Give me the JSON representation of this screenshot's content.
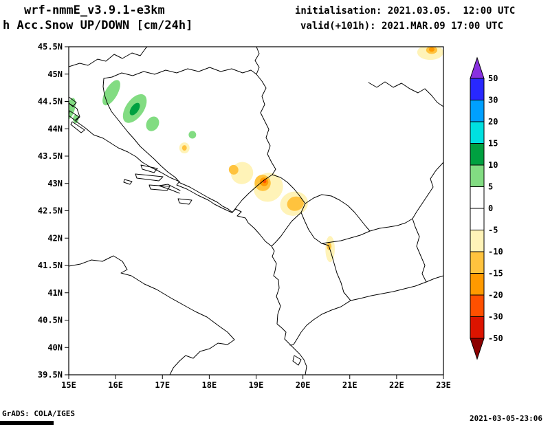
{
  "header": {
    "model": "wrf-nmmE_v3.9.1-e3km",
    "product": "h Acc.Snow UP/DOWN [cm/24h]",
    "initialisation": "initialisation: 2021.03.05.  12:00 UTC",
    "valid": "valid(+101h): 2021.MAR.09 17:00 UTC"
  },
  "footer": {
    "left": "GrADS: COLA/IGES",
    "right": "2021-03-05-23:06"
  },
  "chart_data": {
    "type": "heatmap",
    "x_axis": {
      "range": [
        15,
        23
      ],
      "values": [
        15,
        16,
        17,
        18,
        19,
        20,
        21,
        22,
        23
      ],
      "labels": [
        "15E",
        "16E",
        "17E",
        "18E",
        "19E",
        "20E",
        "21E",
        "22E",
        "23E"
      ]
    },
    "y_axis": {
      "range": [
        39.5,
        45.5
      ],
      "values": [
        45.5,
        45,
        44.5,
        44,
        43.5,
        43,
        42.5,
        42,
        41.5,
        41,
        40.5,
        40,
        39.5
      ],
      "labels": [
        "45.5N",
        "45N",
        "44.5N",
        "44N",
        "43.5N",
        "43N",
        "42.5N",
        "42N",
        "41.5N",
        "41N",
        "40.5N",
        "40N",
        "39.5N"
      ]
    },
    "colorbar": {
      "labels": [
        "50",
        "30",
        "20",
        "15",
        "10",
        "5",
        "0",
        "-5",
        "-10",
        "-15",
        "-20",
        "-30",
        "-50"
      ],
      "colors_top_to_bottom": [
        "#8830E0",
        "#2828FF",
        "#00A0FF",
        "#00E0E0",
        "#00A040",
        "#82DC82",
        "#FFFFFF",
        "#FFFFFF",
        "#FFF3B8",
        "#FFC33E",
        "#FF9A00",
        "#FF5000",
        "#DC1400",
        "#8C0000"
      ]
    },
    "snow_regions": [
      {
        "value_cm": "+5 to +10",
        "color": "#82DC82",
        "lon": 15.91,
        "lat": 44.66,
        "rx_deg": 0.13,
        "ry_deg": 0.26,
        "rot_deg": 30
      },
      {
        "value_cm": "+5 to +10",
        "color": "#82DC82",
        "lon": 16.41,
        "lat": 44.37,
        "rx_deg": 0.19,
        "ry_deg": 0.3,
        "rot_deg": 35
      },
      {
        "value_cm": "+5 to +10",
        "color": "#82DC82",
        "lon": 16.79,
        "lat": 44.09,
        "rx_deg": 0.13,
        "ry_deg": 0.14,
        "rot_deg": 30
      },
      {
        "value_cm": "+5 to +10",
        "color": "#82DC82",
        "lon": 15.04,
        "lat": 44.37,
        "rx_deg": 0.09,
        "ry_deg": 0.2,
        "rot_deg": 15
      },
      {
        "value_cm": "+5 to +10",
        "color": "#82DC82",
        "lon": 15.15,
        "lat": 44.18,
        "rx_deg": 0.06,
        "ry_deg": 0.08,
        "rot_deg": 0
      },
      {
        "value_cm": "+5 to +10",
        "color": "#82DC82",
        "lon": 17.64,
        "lat": 43.89,
        "rx_deg": 0.08,
        "ry_deg": 0.07,
        "rot_deg": 0
      },
      {
        "value_cm": "+10 to +15",
        "color": "#00A040",
        "lon": 16.41,
        "lat": 44.36,
        "rx_deg": 0.08,
        "ry_deg": 0.13,
        "rot_deg": 35
      },
      {
        "value_cm": "-5 to -10",
        "color": "#FFF3B8",
        "lon": 18.7,
        "lat": 43.19,
        "rx_deg": 0.24,
        "ry_deg": 0.2,
        "rot_deg": -40
      },
      {
        "value_cm": "-5 to -10",
        "color": "#FFF3B8",
        "lon": 19.26,
        "lat": 42.93,
        "rx_deg": 0.32,
        "ry_deg": 0.26,
        "rot_deg": -35
      },
      {
        "value_cm": "-5 to -10",
        "color": "#FFF3B8",
        "lon": 19.81,
        "lat": 42.63,
        "rx_deg": 0.3,
        "ry_deg": 0.22,
        "rot_deg": -15
      },
      {
        "value_cm": "-5 to -10",
        "color": "#FFF3B8",
        "lon": 17.47,
        "lat": 43.65,
        "rx_deg": 0.11,
        "ry_deg": 0.1,
        "rot_deg": 0
      },
      {
        "value_cm": "-5 to -10",
        "color": "#FFF3B8",
        "lon": 20.58,
        "lat": 41.8,
        "rx_deg": 0.1,
        "ry_deg": 0.24,
        "rot_deg": 0
      },
      {
        "value_cm": "-5 to -10",
        "color": "#FFF3B8",
        "lon": 22.72,
        "lat": 45.4,
        "rx_deg": 0.28,
        "ry_deg": 0.14,
        "rot_deg": 0
      },
      {
        "value_cm": "-10 to -15",
        "color": "#FFC33E",
        "lon": 18.52,
        "lat": 43.25,
        "rx_deg": 0.1,
        "ry_deg": 0.09,
        "rot_deg": -40
      },
      {
        "value_cm": "-10 to -15",
        "color": "#FFC33E",
        "lon": 19.14,
        "lat": 43.01,
        "rx_deg": 0.17,
        "ry_deg": 0.15,
        "rot_deg": -35
      },
      {
        "value_cm": "-10 to -15",
        "color": "#FFC33E",
        "lon": 19.84,
        "lat": 42.63,
        "rx_deg": 0.18,
        "ry_deg": 0.13,
        "rot_deg": -15
      },
      {
        "value_cm": "-10 to -15",
        "color": "#FFC33E",
        "lon": 17.47,
        "lat": 43.65,
        "rx_deg": 0.05,
        "ry_deg": 0.05,
        "rot_deg": 0
      },
      {
        "value_cm": "-10 to -15",
        "color": "#FFC33E",
        "lon": 20.56,
        "lat": 41.85,
        "rx_deg": 0.05,
        "ry_deg": 0.07,
        "rot_deg": 0
      },
      {
        "value_cm": "-10 to -15",
        "color": "#FFC33E",
        "lon": 22.75,
        "lat": 45.44,
        "rx_deg": 0.12,
        "ry_deg": 0.07,
        "rot_deg": 0
      },
      {
        "value_cm": "-15 to -20",
        "color": "#FF9A00",
        "lon": 19.17,
        "lat": 43.03,
        "rx_deg": 0.09,
        "ry_deg": 0.08,
        "rot_deg": -35
      },
      {
        "value_cm": "-15 to -20",
        "color": "#FF9A00",
        "lon": 22.75,
        "lat": 45.45,
        "rx_deg": 0.06,
        "ry_deg": 0.04,
        "rot_deg": 0
      },
      {
        "value_cm": "-20 to -30",
        "color": "#FF5000",
        "lon": 19.18,
        "lat": 43.04,
        "rx_deg": 0.04,
        "ry_deg": 0.035,
        "rot_deg": 0
      }
    ]
  }
}
